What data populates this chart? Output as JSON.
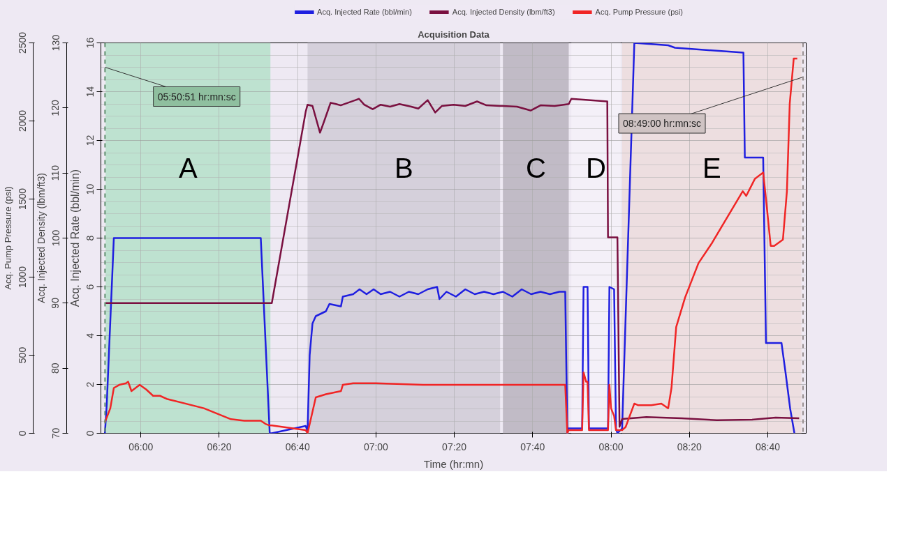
{
  "chart_data": {
    "type": "line",
    "title": "Acquisition Data",
    "xlabel": "Time (hr:mn)",
    "ylabel": "Acq. Injected Rate (bbl/min)",
    "y2label": "Acq. Injected Density (lbm/ft3)",
    "y3label": "Acq. Pump Pressure (psi)",
    "xlim": [
      5.83,
      8.83
    ],
    "xticks": [
      {
        "value": 6,
        "label": "06:00"
      },
      {
        "value": 6.333333,
        "label": "06:20"
      },
      {
        "value": 6.666667,
        "label": "06:40"
      },
      {
        "value": 7,
        "label": "07:00"
      },
      {
        "value": 7.333333,
        "label": "07:20"
      },
      {
        "value": 7.666667,
        "label": "07:40"
      },
      {
        "value": 8,
        "label": "08:00"
      },
      {
        "value": 8.333333,
        "label": "08:20"
      },
      {
        "value": 8.666667,
        "label": "08:40"
      }
    ],
    "ylim": [
      0,
      16
    ],
    "yticks": [
      0,
      2,
      4,
      6,
      8,
      10,
      12,
      14,
      16
    ],
    "y2lim": [
      70,
      130
    ],
    "y2ticks": [
      70,
      80,
      90,
      100,
      110,
      120,
      130
    ],
    "y3lim": [
      0,
      2500
    ],
    "y3ticks": [
      0,
      500,
      1000,
      1500,
      2000,
      2500
    ],
    "grid": true,
    "legend": "top",
    "bands": [
      {
        "axis": "x",
        "from": 5.85,
        "to": 6.551,
        "label": "A",
        "color": "#b5e0c9"
      },
      {
        "axis": "x",
        "from": 6.709,
        "to": 7.528,
        "label": "B",
        "color": "#d0cbd6"
      },
      {
        "axis": "x",
        "from": 7.54,
        "to": 7.82,
        "label": "C",
        "color": "#b9b3bd"
      },
      {
        "axis": "x",
        "from": 7.831,
        "to": 8.041,
        "label": "D",
        "color": "#f4f1f8"
      },
      {
        "axis": "x",
        "from": 8.047,
        "to": 8.81,
        "label": "E",
        "color": "#ecdcdc"
      }
    ],
    "ref_lines": [
      {
        "axis": "x",
        "value": 5.8475,
        "color": "#5f8f6f",
        "line_style": "dashed"
      },
      {
        "axis": "x",
        "value": 8.816667,
        "color": "#999090",
        "line_style": "dashed"
      }
    ],
    "annotations": [
      {
        "text": "05:50:51 hr:mn:sc",
        "x": 5.8475,
        "y": 15
      },
      {
        "text": "08:49:00 hr:mn:sc",
        "x": 8.816667,
        "y": 14.6
      }
    ],
    "series": [
      {
        "name": "Acq. Injected Rate (bbl/min)",
        "color": "#1f1fe0",
        "x": [
          5.847,
          5.855,
          5.885,
          6.51,
          6.548,
          6.557,
          6.701,
          6.709,
          6.718,
          6.73,
          6.744,
          6.787,
          6.802,
          6.851,
          6.859,
          6.903,
          6.93,
          6.96,
          6.99,
          7.02,
          7.06,
          7.1,
          7.14,
          7.18,
          7.22,
          7.26,
          7.27,
          7.3,
          7.34,
          7.38,
          7.42,
          7.46,
          7.5,
          7.54,
          7.58,
          7.62,
          7.66,
          7.7,
          7.74,
          7.78,
          7.805,
          7.814,
          7.819,
          7.877,
          7.883,
          7.9,
          7.906,
          7.987,
          7.993,
          8.013,
          8.021,
          8.027,
          8.047,
          8.099,
          8.243,
          8.272,
          8.563,
          8.569,
          8.647,
          8.659,
          8.725,
          8.742,
          8.762,
          8.78
        ],
        "values": [
          0,
          1.2,
          8,
          8,
          0,
          0,
          0.3,
          0.1,
          3.2,
          4.5,
          4.8,
          5.0,
          5.3,
          5.2,
          5.6,
          5.7,
          5.9,
          5.7,
          5.9,
          5.7,
          5.8,
          5.6,
          5.8,
          5.7,
          5.9,
          6.0,
          5.5,
          5.8,
          5.6,
          5.9,
          5.7,
          5.8,
          5.7,
          5.8,
          5.6,
          5.9,
          5.7,
          5.8,
          5.7,
          5.8,
          5.8,
          0,
          0.2,
          0.2,
          6.0,
          6.0,
          0.2,
          0.2,
          6.0,
          5.9,
          0.2,
          0,
          0.2,
          16,
          15.9,
          15.8,
          15.6,
          11.3,
          11.3,
          3.7,
          3.7,
          2.5,
          1.0,
          0
        ]
      },
      {
        "name": "Acq. Injected Density (lbm/ft3)",
        "color": "#7a1040",
        "axis": "y2",
        "x": [
          5.85,
          6.548,
          6.557,
          6.701,
          6.709,
          6.73,
          6.762,
          6.78,
          6.807,
          6.83,
          6.85,
          6.928,
          6.95,
          6.986,
          7.02,
          7.06,
          7.1,
          7.15,
          7.18,
          7.22,
          7.252,
          7.28,
          7.33,
          7.38,
          7.43,
          7.47,
          7.528,
          7.54,
          7.6,
          7.658,
          7.7,
          7.76,
          7.82,
          7.831,
          7.984,
          7.987,
          8.027,
          8.036,
          8.047,
          8.15,
          8.3,
          8.45,
          8.6,
          8.7,
          8.8
        ],
        "values": [
          90,
          90,
          90,
          119.4,
          120.5,
          120.3,
          116.2,
          118,
          120.8,
          120.6,
          120.4,
          121.4,
          120.5,
          119.8,
          120.5,
          120.2,
          120.6,
          120.2,
          119.9,
          121.2,
          119.3,
          120.3,
          120.5,
          120.3,
          121.0,
          120.4,
          120.3,
          120.3,
          120.2,
          119.6,
          120.4,
          120.3,
          120.6,
          121.4,
          121.0,
          100.1,
          100.1,
          71,
          72.2,
          72.5,
          72.3,
          72.0,
          72.1,
          72.4,
          72.3
        ]
      },
      {
        "name": "Acq. Pump Pressure (psi)",
        "color": "#f02525",
        "axis": "y3",
        "x": [
          5.847,
          5.87,
          5.885,
          5.908,
          5.937,
          5.946,
          5.96,
          5.995,
          6.023,
          6.052,
          6.081,
          6.11,
          6.268,
          6.383,
          6.44,
          6.51,
          6.53,
          6.548,
          6.557,
          6.701,
          6.709,
          6.744,
          6.787,
          6.851,
          6.859,
          6.903,
          7.0,
          7.2,
          7.4,
          7.6,
          7.805,
          7.814,
          7.819,
          7.877,
          7.883,
          7.894,
          7.9,
          7.906,
          7.987,
          7.993,
          8.0,
          8.013,
          8.021,
          8.047,
          8.062,
          8.099,
          8.114,
          8.142,
          8.171,
          8.214,
          8.243,
          8.257,
          8.277,
          8.315,
          8.372,
          8.43,
          8.56,
          8.575,
          8.612,
          8.647,
          8.659,
          8.679,
          8.694,
          8.731,
          8.748,
          8.76,
          8.777,
          8.792
        ],
        "values": [
          70,
          160,
          290,
          310,
          320,
          330,
          270,
          310,
          280,
          240,
          240,
          220,
          160,
          90,
          80,
          80,
          60,
          50,
          50,
          20,
          0,
          230,
          250,
          270,
          310,
          320,
          320,
          310,
          310,
          310,
          310,
          0,
          20,
          20,
          390,
          330,
          330,
          20,
          20,
          310,
          160,
          110,
          20,
          20,
          40,
          190,
          180,
          180,
          180,
          190,
          160,
          290,
          680,
          870,
          1090,
          1220,
          1550,
          1520,
          1630,
          1670,
          1500,
          1200,
          1200,
          1240,
          1550,
          2110,
          2400,
          2400
        ]
      }
    ]
  }
}
